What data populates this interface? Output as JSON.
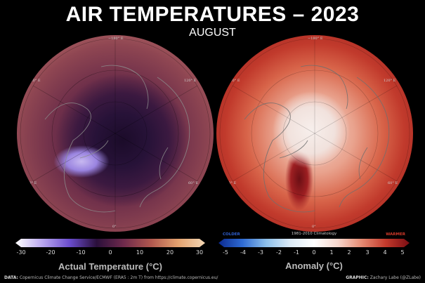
{
  "title": "AIR TEMPERATURES – 2023",
  "subtitle": "AUGUST",
  "maps": {
    "left_longitudes": [
      "−180° E",
      "120° E",
      "60° E",
      "0°",
      "−60° E",
      "−120° E"
    ],
    "right_longitudes": [
      "−180° E",
      "120° E",
      "60° E",
      "0°",
      "−60° E",
      "−120° E"
    ]
  },
  "colorbar_actual": {
    "ticks": [
      "-30",
      "-20",
      "-10",
      "0",
      "10",
      "20",
      "30"
    ],
    "label": "Actual Temperature (°C)",
    "colors": [
      "#ffffff",
      "#b9a6ef",
      "#6a4ccd",
      "#2a0f3a",
      "#6f2a4c",
      "#b0574e",
      "#e4a26f",
      "#f3d7b5"
    ]
  },
  "colorbar_anomaly": {
    "title": "1981-2010 Climatology",
    "colder": "COLDER",
    "warmer": "WARMER",
    "ticks": [
      "-5",
      "-4",
      "-3",
      "-2",
      "-1",
      "0",
      "1",
      "2",
      "3",
      "4",
      "5"
    ],
    "label": "Anomaly (°C)",
    "colors": [
      "#0b2a8f",
      "#2f6bd3",
      "#8dbfe9",
      "#dbeaf6",
      "#ffffff",
      "#f6d6cc",
      "#e58a72",
      "#c33a2c",
      "#7a0c12"
    ]
  },
  "credits": {
    "data_label": "DATA:",
    "data_text": "Copernicus Climate Change Service/ECMWF (ERA5 : 2m T) from https://climate.copernicus.eu/",
    "graphic_label": "GRAPHIC:",
    "graphic_text": "Zachary Labe (@ZLabe)"
  }
}
